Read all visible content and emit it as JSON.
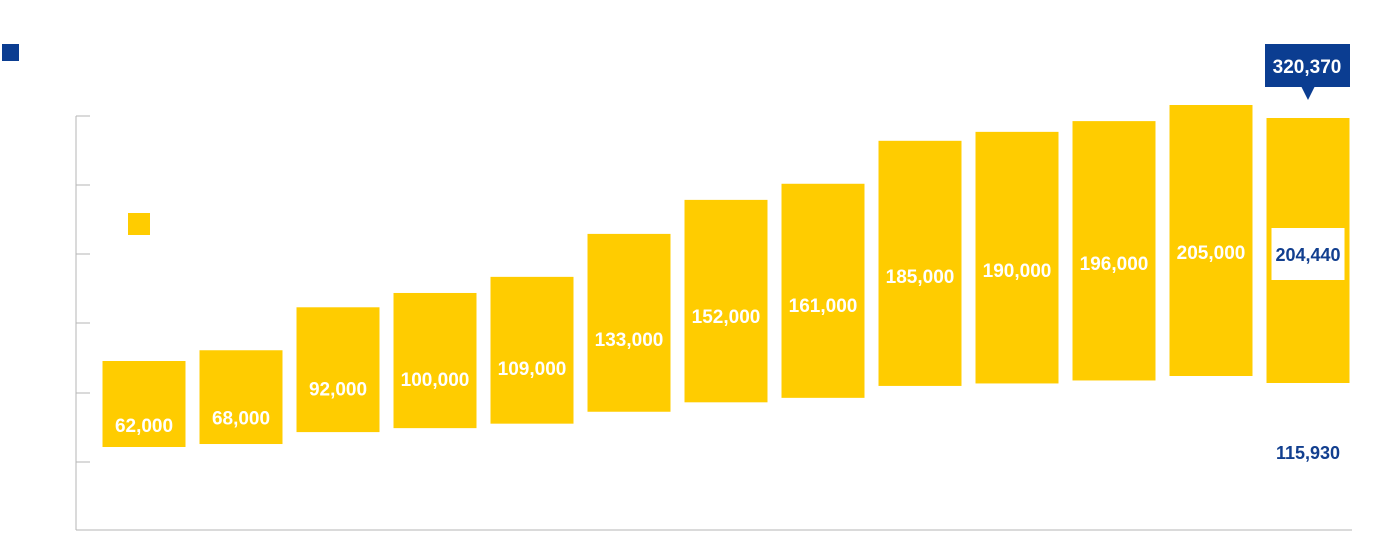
{
  "colors": {
    "bar": "#FFCC00",
    "accent": "#0B3D91",
    "axis": "#b5b5b5",
    "bar_text": "#ffffff",
    "highlight_text": "#123F8F"
  },
  "chart_data": {
    "type": "bar",
    "subtype": "floating-range-bar",
    "title": "",
    "xlabel": "",
    "ylabel": "",
    "grid": false,
    "y_ticks_labeled": false,
    "categories": [
      "",
      "",
      "",
      "",
      "",
      "",
      "",
      "",
      "",
      "",
      "",
      "",
      ""
    ],
    "values": [
      62000,
      68000,
      92000,
      100000,
      109000,
      133000,
      152000,
      161000,
      185000,
      190000,
      196000,
      205000,
      204440
    ],
    "ranges": [
      [
        null,
        null
      ],
      [
        null,
        null
      ],
      [
        null,
        null
      ],
      [
        null,
        null
      ],
      [
        null,
        null
      ],
      [
        null,
        null
      ],
      [
        null,
        null
      ],
      [
        null,
        null
      ],
      [
        null,
        null
      ],
      [
        null,
        null
      ],
      [
        null,
        null
      ],
      [
        null,
        null
      ],
      [
        115930,
        320370
      ]
    ],
    "value_labels": [
      "62,000",
      "68,000",
      "92,000",
      "100,000",
      "109,000",
      "133,000",
      "152,000",
      "161,000",
      "185,000",
      "190,000",
      "196,000",
      "205,000",
      "204,440"
    ],
    "last_bar": {
      "high_label": "320,370",
      "mid_label": "204,440",
      "low_label": "115,930"
    }
  }
}
